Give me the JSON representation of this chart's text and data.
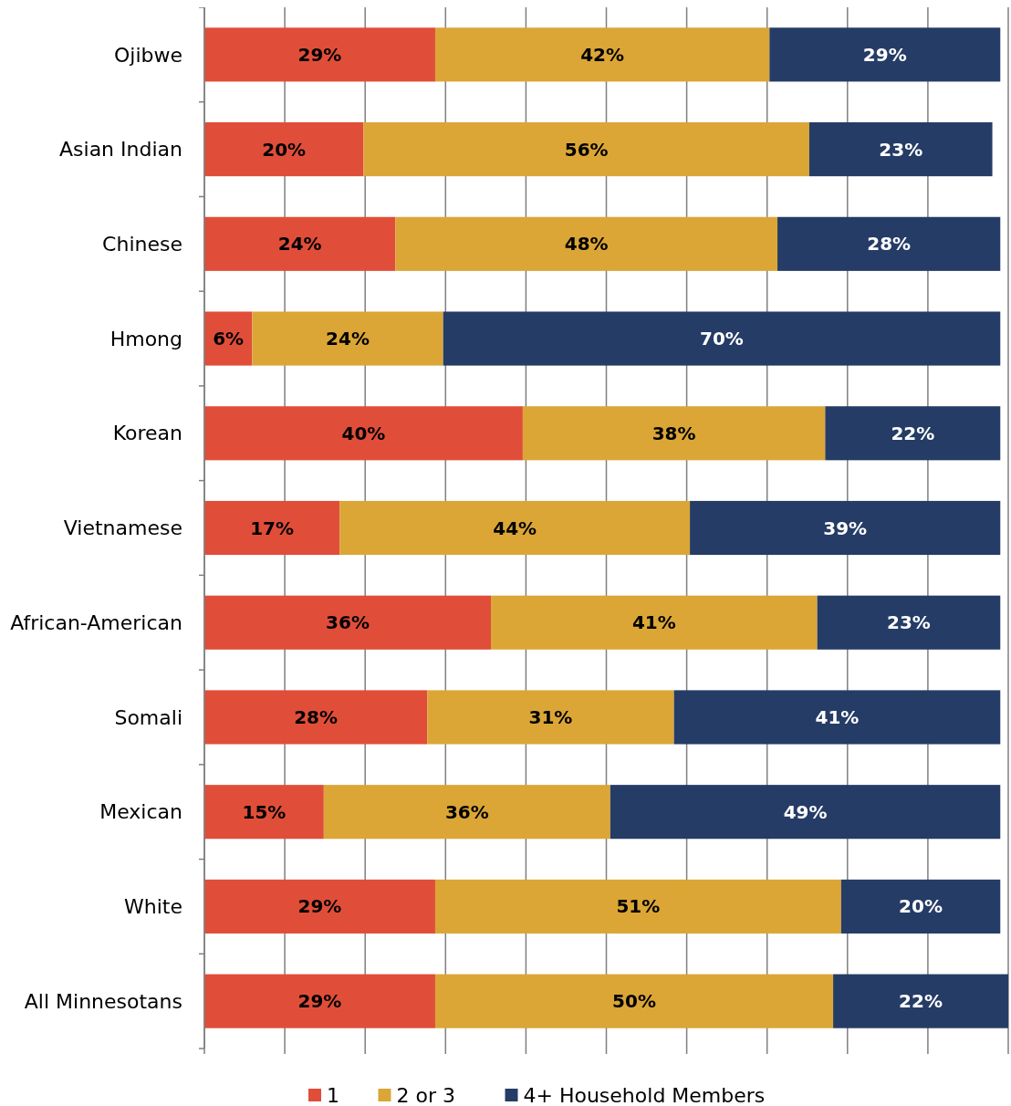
{
  "chart_data": {
    "type": "bar",
    "orientation": "horizontal",
    "stacked": true,
    "categories": [
      "Ojibwe",
      "Asian Indian",
      "Chinese",
      "Hmong",
      "Korean",
      "Vietnamese",
      "African-American",
      "Somali",
      "Mexican",
      "White",
      "All Minnesotans"
    ],
    "series": [
      {
        "name": "1",
        "color": "#e04e39",
        "values": [
          29,
          20,
          24,
          6,
          40,
          17,
          36,
          28,
          15,
          29,
          29
        ],
        "value_labels": [
          "29%",
          "20%",
          "24%",
          "6%",
          "40%",
          "17%",
          "36%",
          "28%",
          "15%",
          "29%",
          "29%"
        ]
      },
      {
        "name": "2 or 3",
        "color": "#dba636",
        "values": [
          42,
          56,
          48,
          24,
          38,
          44,
          41,
          31,
          36,
          51,
          50
        ],
        "value_labels": [
          "42%",
          "56%",
          "48%",
          "24%",
          "38%",
          "44%",
          "41%",
          "31%",
          "36%",
          "51%",
          "50%"
        ]
      },
      {
        "name": "4+ Household Members",
        "color": "#253c66",
        "values": [
          29,
          23,
          28,
          70,
          22,
          39,
          23,
          41,
          49,
          20,
          22
        ],
        "value_labels": [
          "29%",
          "23%",
          "28%",
          "70%",
          "22%",
          "39%",
          "23%",
          "41%",
          "49%",
          "20%",
          "22%"
        ]
      }
    ],
    "tick_labels": "y",
    "grid": "x",
    "legend": "bottom"
  }
}
